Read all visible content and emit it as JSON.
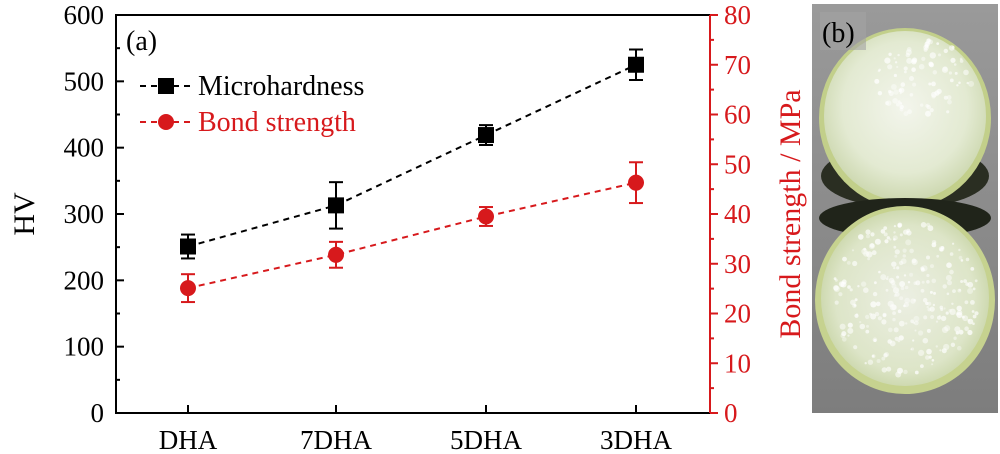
{
  "chart_data": {
    "type": "line",
    "panel_label": "(a)",
    "categories": [
      "DHA",
      "7DHA",
      "5DHA",
      "3DHA"
    ],
    "ylabel_left": "HV",
    "ylabel_right": "Bond strength / MPa",
    "ylim_left": [
      0,
      600
    ],
    "yticks_left": [
      0,
      100,
      200,
      300,
      400,
      500,
      600
    ],
    "ylim_right": [
      0,
      80
    ],
    "yticks_right": [
      0,
      10,
      20,
      30,
      40,
      50,
      60,
      70,
      80
    ],
    "grid": false,
    "legend_position": "top-left",
    "series": [
      {
        "name": "Microhardness",
        "axis": "left",
        "marker": "square",
        "color": "#000000",
        "values": [
          251,
          313,
          419,
          525
        ],
        "errors": [
          18,
          35,
          15,
          23
        ]
      },
      {
        "name": "Bond strength",
        "axis": "right",
        "marker": "circle",
        "color": "#d7191c",
        "values": [
          25.1,
          31.8,
          39.5,
          46.3
        ],
        "errors": [
          2.8,
          2.6,
          1.9,
          4.1
        ]
      }
    ]
  },
  "photo": {
    "panel_label": "(b)"
  }
}
